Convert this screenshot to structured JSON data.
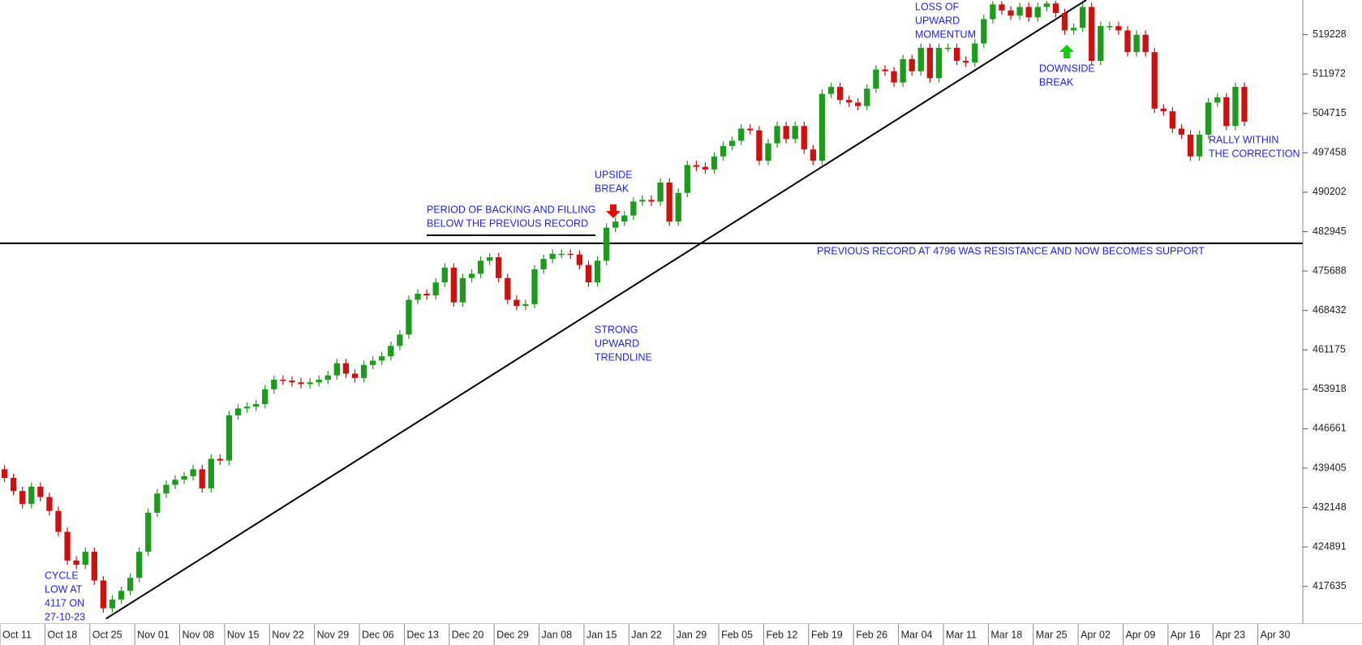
{
  "chart_data": {
    "type": "candlestick",
    "categories": [
      "Oct 11",
      null,
      null,
      null,
      null,
      "Oct 18",
      null,
      null,
      null,
      null,
      "Oct 25",
      null,
      null,
      null,
      null,
      "Nov 01",
      null,
      null,
      null,
      null,
      "Nov 08",
      null,
      null,
      null,
      null,
      "Nov 15",
      null,
      null,
      null,
      null,
      "Nov 22",
      null,
      null,
      null,
      null,
      "Nov 29",
      null,
      null,
      null,
      null,
      "Dec 06",
      null,
      null,
      null,
      null,
      "Dec 13",
      null,
      null,
      null,
      null,
      "Dec 20",
      null,
      null,
      null,
      null,
      "Dec 29",
      null,
      null,
      null,
      null,
      "Jan 08",
      null,
      null,
      null,
      null,
      "Jan 15",
      null,
      null,
      null,
      null,
      "Jan 22",
      null,
      null,
      null,
      null,
      "Jan 29",
      null,
      null,
      null,
      null,
      "Feb 05",
      null,
      null,
      null,
      null,
      "Feb 12",
      null,
      null,
      null,
      null,
      "Feb 19",
      null,
      null,
      null,
      null,
      "Feb 26",
      null,
      null,
      null,
      null,
      "Mar 04",
      null,
      null,
      null,
      null,
      "Mar 11",
      null,
      null,
      null,
      null,
      "Mar 18",
      null,
      null,
      null,
      null,
      "Mar 25",
      null,
      null,
      null,
      null,
      "Apr 02",
      null,
      null,
      null,
      null,
      "Apr 09",
      null,
      null,
      null,
      null,
      "Apr 16",
      null,
      null,
      null,
      null,
      "Apr 23",
      null,
      null,
      null,
      null,
      "Apr 30",
      null,
      null,
      null,
      null
    ],
    "open": [
      439200,
      437600,
      435200,
      432800,
      436000,
      434080,
      431520,
      427680,
      422400,
      421600,
      424000,
      418720,
      413600,
      415200,
      416800,
      419200,
      424000,
      431200,
      434720,
      436320,
      437280,
      437920,
      439200,
      435680,
      441120,
      440800,
      449120,
      450400,
      450720,
      451200,
      453920,
      455680,
      455520,
      455200,
      454880,
      455200,
      455680,
      456480,
      458720,
      456800,
      456000,
      458400,
      459200,
      460000,
      461920,
      464000,
      470400,
      471520,
      471200,
      473600,
      476320,
      469920,
      474400,
      475200,
      477600,
      478240,
      474400,
      470400,
      469280,
      469600,
      476000,
      477920,
      478880,
      478880,
      478720,
      476800,
      473600,
      477600,
      483680,
      484800,
      485920,
      488480,
      488800,
      488480,
      492000,
      484800,
      490080,
      495200,
      494880,
      494400,
      496800,
      498720,
      499680,
      501920,
      501600,
      496000,
      499200,
      502400,
      500000,
      502400,
      498080,
      496000,
      508320,
      509600,
      507200,
      506720,
      506080,
      509280,
      512800,
      512480,
      510400,
      514720,
      512480,
      516800,
      511200,
      516800,
      516800,
      514400,
      514080,
      517600,
      522080,
      524800,
      523680,
      522720,
      524320,
      522400,
      524320,
      524960,
      523200,
      520000,
      520480,
      524320,
      514400,
      520800,
      520800,
      520000,
      516000,
      519200,
      516000,
      505600,
      505120,
      501920,
      500800,
      496800,
      500800,
      506720,
      507680,
      502400,
      509600,
      null,
      null,
      null,
      null,
      null,
      null
    ],
    "high": [
      440000,
      438400,
      436000,
      436800,
      436800,
      434880,
      432320,
      428480,
      423200,
      424800,
      424800,
      419520,
      416000,
      417600,
      420000,
      424800,
      432000,
      435520,
      437120,
      438080,
      438720,
      440000,
      440000,
      441920,
      441920,
      449920,
      451200,
      451520,
      452000,
      454720,
      456480,
      456480,
      456320,
      456000,
      456000,
      456480,
      457280,
      459520,
      459520,
      457600,
      459200,
      460000,
      460800,
      462720,
      464800,
      471200,
      472320,
      472320,
      474400,
      477120,
      477120,
      475200,
      476000,
      478400,
      479040,
      479040,
      475200,
      471200,
      470400,
      476800,
      478720,
      479680,
      479680,
      479680,
      479520,
      477600,
      478400,
      484480,
      485600,
      486720,
      489280,
      489600,
      489600,
      492800,
      492800,
      490880,
      496000,
      496000,
      495680,
      497600,
      499520,
      500480,
      502720,
      502720,
      502400,
      500000,
      503200,
      503200,
      503200,
      503200,
      498880,
      509120,
      510400,
      510400,
      508000,
      507520,
      510080,
      513600,
      513600,
      513280,
      515520,
      515520,
      517600,
      517600,
      517600,
      517600,
      517600,
      515200,
      518400,
      522880,
      525400,
      525400,
      524480,
      525120,
      525120,
      525120,
      525440,
      525440,
      524000,
      521280,
      525120,
      525120,
      521600,
      521600,
      521600,
      520800,
      520000,
      520000,
      516800,
      506400,
      505920,
      502720,
      501600,
      501600,
      507520,
      508480,
      508480,
      510400,
      510400,
      null,
      null,
      null,
      null,
      null,
      null
    ],
    "low": [
      436800,
      434400,
      432000,
      432000,
      433280,
      430720,
      426880,
      421600,
      420800,
      420800,
      417920,
      412800,
      412800,
      414400,
      416000,
      418400,
      423200,
      430400,
      433920,
      435520,
      436480,
      437120,
      434880,
      434880,
      440000,
      440000,
      448320,
      449600,
      449920,
      450400,
      453120,
      454720,
      454400,
      454080,
      454080,
      454400,
      454880,
      455680,
      456000,
      455200,
      455200,
      457600,
      458400,
      459200,
      461120,
      463200,
      469600,
      470400,
      470400,
      472800,
      469120,
      469120,
      473600,
      474400,
      476800,
      473600,
      469600,
      468480,
      468480,
      468800,
      475200,
      477120,
      478080,
      477920,
      476000,
      472800,
      472800,
      476800,
      482880,
      484000,
      485120,
      487680,
      487680,
      487680,
      484000,
      484000,
      489280,
      494080,
      493600,
      493600,
      496000,
      497920,
      498880,
      500800,
      495200,
      495200,
      498400,
      499200,
      499200,
      497280,
      495200,
      495200,
      507520,
      506400,
      505920,
      505280,
      505280,
      508480,
      511680,
      509600,
      509600,
      511680,
      511680,
      510400,
      510400,
      516000,
      513600,
      513280,
      513280,
      516800,
      521280,
      522880,
      521920,
      521920,
      521600,
      521600,
      523520,
      522400,
      519200,
      519200,
      519680,
      513600,
      513600,
      520000,
      519200,
      515200,
      515200,
      515200,
      504800,
      504320,
      501120,
      500000,
      496000,
      496000,
      500000,
      505920,
      501600,
      501600,
      502400,
      null,
      null,
      null,
      null,
      null,
      null
    ],
    "close": [
      437600,
      435200,
      432800,
      436000,
      434080,
      431520,
      427680,
      422400,
      421600,
      424000,
      418720,
      413600,
      415200,
      416800,
      419200,
      424000,
      431200,
      434720,
      436320,
      437280,
      437920,
      439200,
      435680,
      441120,
      440800,
      449120,
      450400,
      450720,
      451200,
      453920,
      455680,
      455520,
      455200,
      454880,
      455200,
      455680,
      456480,
      458720,
      456800,
      456000,
      458400,
      459200,
      460000,
      461920,
      464000,
      470400,
      471520,
      471200,
      473600,
      476320,
      469920,
      474400,
      475200,
      477600,
      478240,
      474400,
      470400,
      469280,
      469600,
      476000,
      477920,
      478880,
      478880,
      478720,
      476800,
      473600,
      477600,
      483680,
      484800,
      485920,
      488480,
      488800,
      488480,
      492000,
      484800,
      490080,
      495200,
      494880,
      494400,
      496800,
      498720,
      499680,
      501920,
      501600,
      496000,
      499200,
      502400,
      500000,
      502400,
      498080,
      496000,
      508320,
      509600,
      507200,
      506720,
      506080,
      509280,
      512800,
      512480,
      510400,
      514720,
      512480,
      516800,
      511200,
      516800,
      516800,
      514400,
      514080,
      517600,
      522080,
      524800,
      523680,
      522720,
      524320,
      522400,
      524320,
      524960,
      523200,
      520000,
      520480,
      524320,
      514400,
      520800,
      520800,
      520000,
      516000,
      519200,
      516000,
      505600,
      505120,
      501920,
      500800,
      496800,
      500800,
      506720,
      507680,
      502400,
      509600,
      503200,
      null,
      null,
      null,
      null,
      null,
      null
    ],
    "up_color": "#1e9a1e",
    "down_color": "#cc1111",
    "ylim": [
      410720,
      525600
    ],
    "yticks": [
      417635,
      424891,
      432148,
      439405,
      446661,
      453918,
      461175,
      468432,
      475688,
      482945,
      490202,
      497458,
      504715,
      511972,
      519228
    ],
    "support_line": 480800,
    "trendline": {
      "x": [
        11.8,
        120.9
      ],
      "y": [
        411680,
        525600
      ]
    },
    "annotations": [
      [
        "CYCLE",
        "LOW AT",
        "4117 ON",
        "27-10-23"
      ],
      [
        "PERIOD OF BACKING AND FILLING",
        "BELOW THE PREVIOUS RECORD"
      ],
      [
        "UPSIDE",
        "BREAK"
      ],
      [
        "STRONG",
        "UPWARD",
        "TRENDLINE"
      ],
      [
        "LOSS OF",
        "UPWARD",
        "MOMENTUM"
      ],
      [
        "DOWNSIDE",
        "BREAK"
      ],
      [
        "RALLY WITHIN",
        "THE CORRECTION"
      ],
      [
        "PREVIOUS RECORD AT 4796 WAS RESISTANCE AND NOW BECOMES SUPPORT"
      ]
    ]
  }
}
